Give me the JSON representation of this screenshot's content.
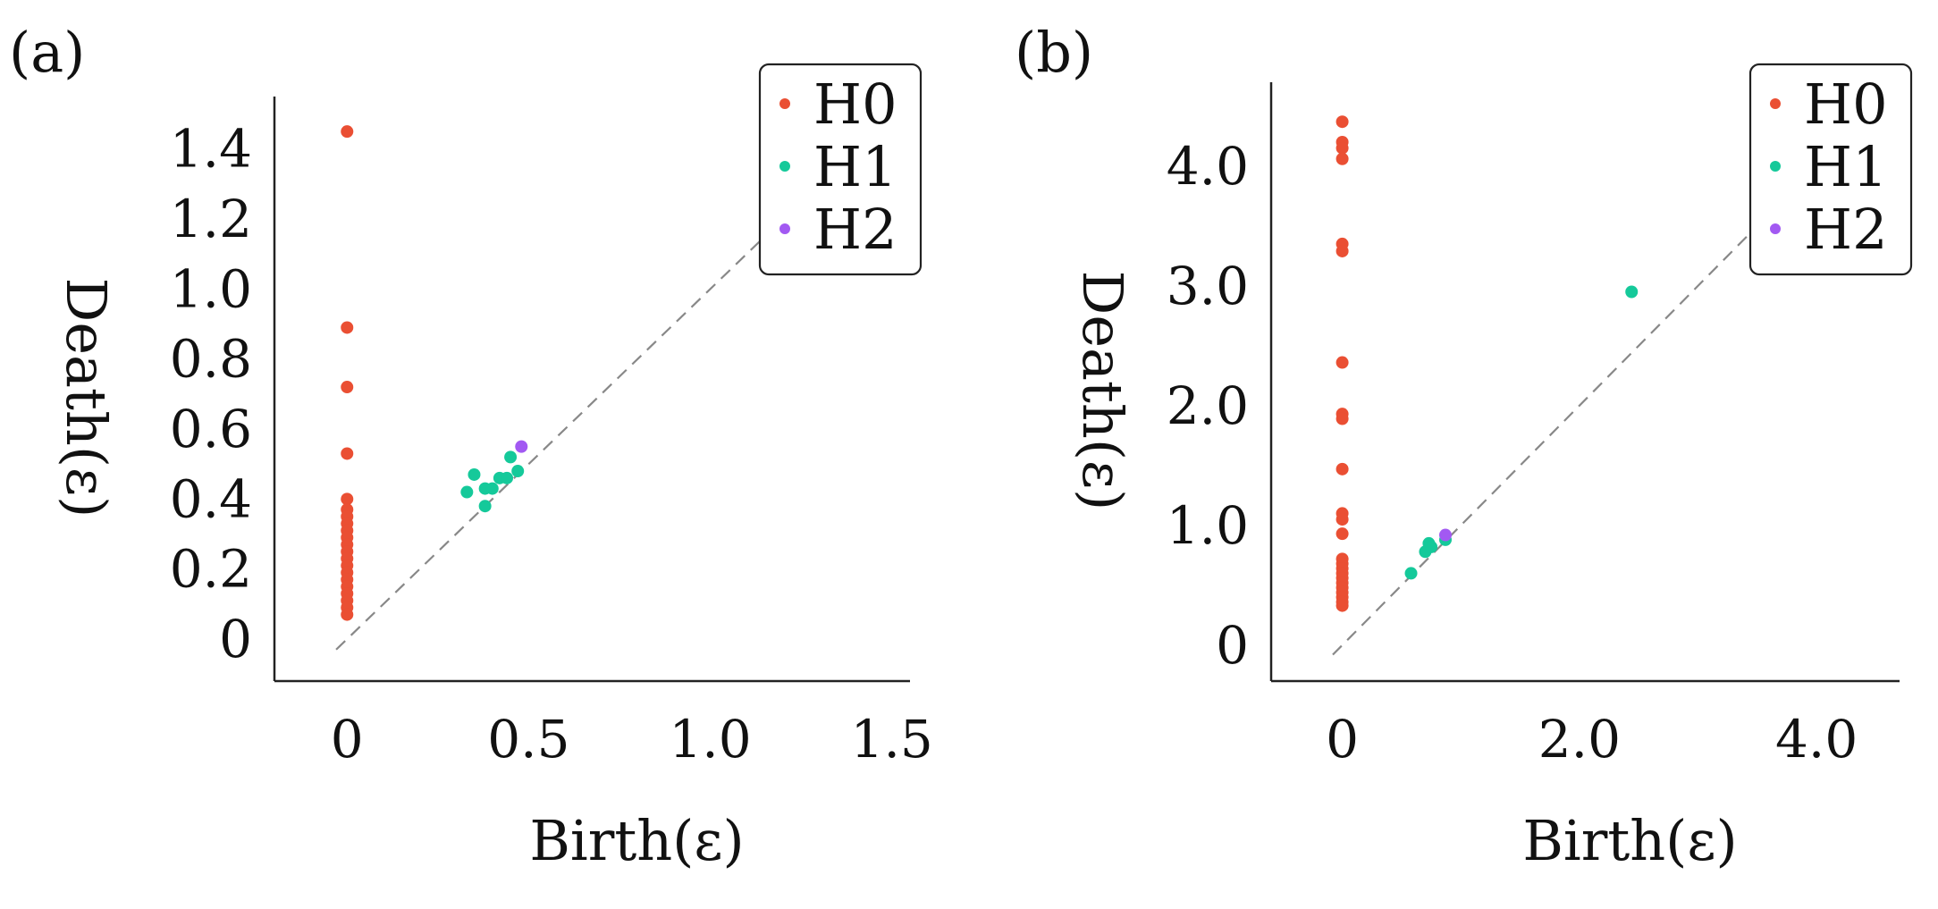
{
  "colors": {
    "H0": "#ea4f33",
    "H1": "#15c99a",
    "H2": "#a259f2",
    "axis": "#222222",
    "diagonal": "#888888"
  },
  "chart_data": [
    {
      "type": "scatter",
      "panel_label": "(a)",
      "xlabel": "Birth(ε)",
      "ylabel": "Death(ε)",
      "xlim": [
        -0.2,
        1.55
      ],
      "ylim": [
        -0.12,
        1.55
      ],
      "x_ticks": [
        0,
        0.5,
        1.0,
        1.5
      ],
      "x_tick_labels": [
        "0",
        "0.5",
        "1.0",
        "1.5"
      ],
      "y_ticks": [
        0,
        0.2,
        0.4,
        0.6,
        0.8,
        1.0,
        1.2,
        1.4
      ],
      "y_tick_labels": [
        "0",
        "0.2",
        "0.4",
        "0.6",
        "0.8",
        "1.0",
        "1.2",
        "1.4"
      ],
      "diagonal_range": [
        -0.03,
        1.15
      ],
      "legend_position": "top-right",
      "series": [
        {
          "name": "H0",
          "color_key": "H0",
          "points": [
            [
              0,
              1.45
            ],
            [
              0,
              0.89
            ],
            [
              0,
              0.72
            ],
            [
              0,
              0.53
            ],
            [
              0,
              0.4
            ],
            [
              0,
              0.37
            ],
            [
              0,
              0.35
            ],
            [
              0,
              0.33
            ],
            [
              0,
              0.31
            ],
            [
              0,
              0.29
            ],
            [
              0,
              0.27
            ],
            [
              0,
              0.25
            ],
            [
              0,
              0.23
            ],
            [
              0,
              0.21
            ],
            [
              0,
              0.19
            ],
            [
              0,
              0.17
            ],
            [
              0,
              0.15
            ],
            [
              0,
              0.13
            ],
            [
              0,
              0.11
            ],
            [
              0,
              0.09
            ],
            [
              0,
              0.07
            ]
          ]
        },
        {
          "name": "H1",
          "color_key": "H1",
          "points": [
            [
              0.33,
              0.42
            ],
            [
              0.35,
              0.47
            ],
            [
              0.38,
              0.43
            ],
            [
              0.38,
              0.38
            ],
            [
              0.4,
              0.43
            ],
            [
              0.42,
              0.46
            ],
            [
              0.44,
              0.46
            ],
            [
              0.45,
              0.52
            ],
            [
              0.47,
              0.48
            ]
          ]
        },
        {
          "name": "H2",
          "color_key": "H2",
          "points": [
            [
              0.48,
              0.55
            ]
          ]
        }
      ]
    },
    {
      "type": "scatter",
      "panel_label": "(b)",
      "xlabel": "Birth(ε)",
      "ylabel": "Death(ε)",
      "xlim": [
        -0.6,
        4.7
      ],
      "ylim": [
        -0.3,
        4.7
      ],
      "x_ticks": [
        0,
        2.0,
        4.0
      ],
      "x_tick_labels": [
        "0",
        "2.0",
        "4.0"
      ],
      "y_ticks": [
        0,
        1.0,
        2.0,
        3.0,
        4.0
      ],
      "y_tick_labels": [
        "0",
        "1.0",
        "2.0",
        "3.0",
        "4.0"
      ],
      "diagonal_range": [
        -0.08,
        3.65
      ],
      "legend_position": "top-right",
      "series": [
        {
          "name": "H0",
          "color_key": "H0",
          "points": [
            [
              0,
              4.37
            ],
            [
              0,
              4.2
            ],
            [
              0,
              4.15
            ],
            [
              0,
              4.06
            ],
            [
              0,
              3.35
            ],
            [
              0,
              3.29
            ],
            [
              0,
              2.36
            ],
            [
              0,
              1.93
            ],
            [
              0,
              1.89
            ],
            [
              0,
              1.47
            ],
            [
              0,
              1.1
            ],
            [
              0,
              1.05
            ],
            [
              0,
              0.93
            ],
            [
              0,
              0.72
            ],
            [
              0,
              0.68
            ],
            [
              0,
              0.64
            ],
            [
              0,
              0.6
            ],
            [
              0,
              0.56
            ],
            [
              0,
              0.52
            ],
            [
              0,
              0.48
            ],
            [
              0,
              0.44
            ],
            [
              0,
              0.4
            ],
            [
              0,
              0.36
            ],
            [
              0,
              0.33
            ]
          ]
        },
        {
          "name": "H1",
          "color_key": "H1",
          "points": [
            [
              2.44,
              2.95
            ],
            [
              0.58,
              0.6
            ],
            [
              0.7,
              0.78
            ],
            [
              0.73,
              0.85
            ],
            [
              0.75,
              0.82
            ],
            [
              0.87,
              0.88
            ]
          ]
        },
        {
          "name": "H2",
          "color_key": "H2",
          "points": [
            [
              0.87,
              0.92
            ]
          ]
        }
      ]
    }
  ]
}
